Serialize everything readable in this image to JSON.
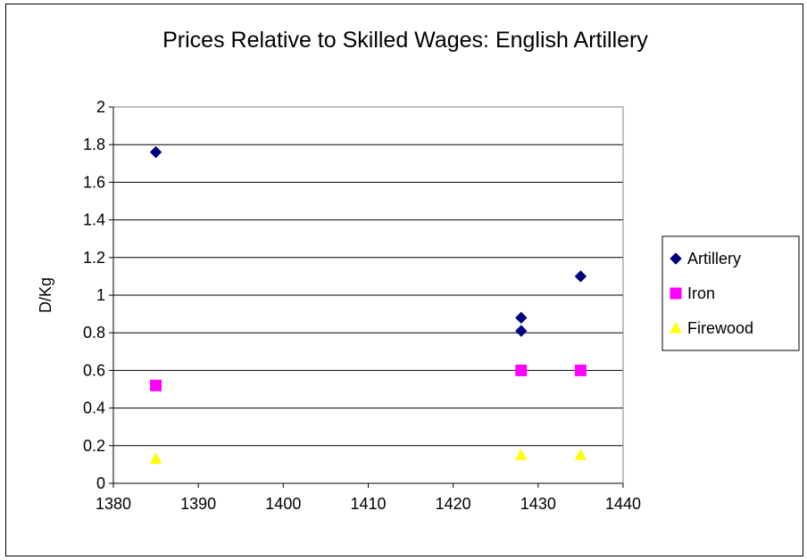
{
  "chart_data": {
    "type": "scatter",
    "title": "Prices Relative to Skilled Wages: English Artillery",
    "xlabel": "",
    "ylabel": "D/Kg",
    "xlim": [
      1380,
      1440
    ],
    "ylim": [
      0,
      2
    ],
    "xticks": [
      "1380",
      "1390",
      "1400",
      "1410",
      "1420",
      "1430",
      "1440"
    ],
    "yticks": [
      "0",
      "0.2",
      "0.4",
      "0.6",
      "0.8",
      "1",
      "1.2",
      "1.4",
      "1.6",
      "1.8",
      "2"
    ],
    "grid": true,
    "legend_position": "right",
    "series": [
      {
        "name": "Artillery",
        "marker": "diamond",
        "color": "#000080",
        "x": [
          1385,
          1428,
          1428,
          1435
        ],
        "y": [
          1.76,
          0.88,
          0.81,
          1.1
        ]
      },
      {
        "name": "Iron",
        "marker": "square",
        "color": "#ff00ff",
        "x": [
          1385,
          1428,
          1435
        ],
        "y": [
          0.52,
          0.6,
          0.6
        ]
      },
      {
        "name": "Firewood",
        "marker": "triangle",
        "color": "#ffff00",
        "x": [
          1385,
          1428,
          1435
        ],
        "y": [
          0.13,
          0.15,
          0.15
        ]
      }
    ]
  }
}
